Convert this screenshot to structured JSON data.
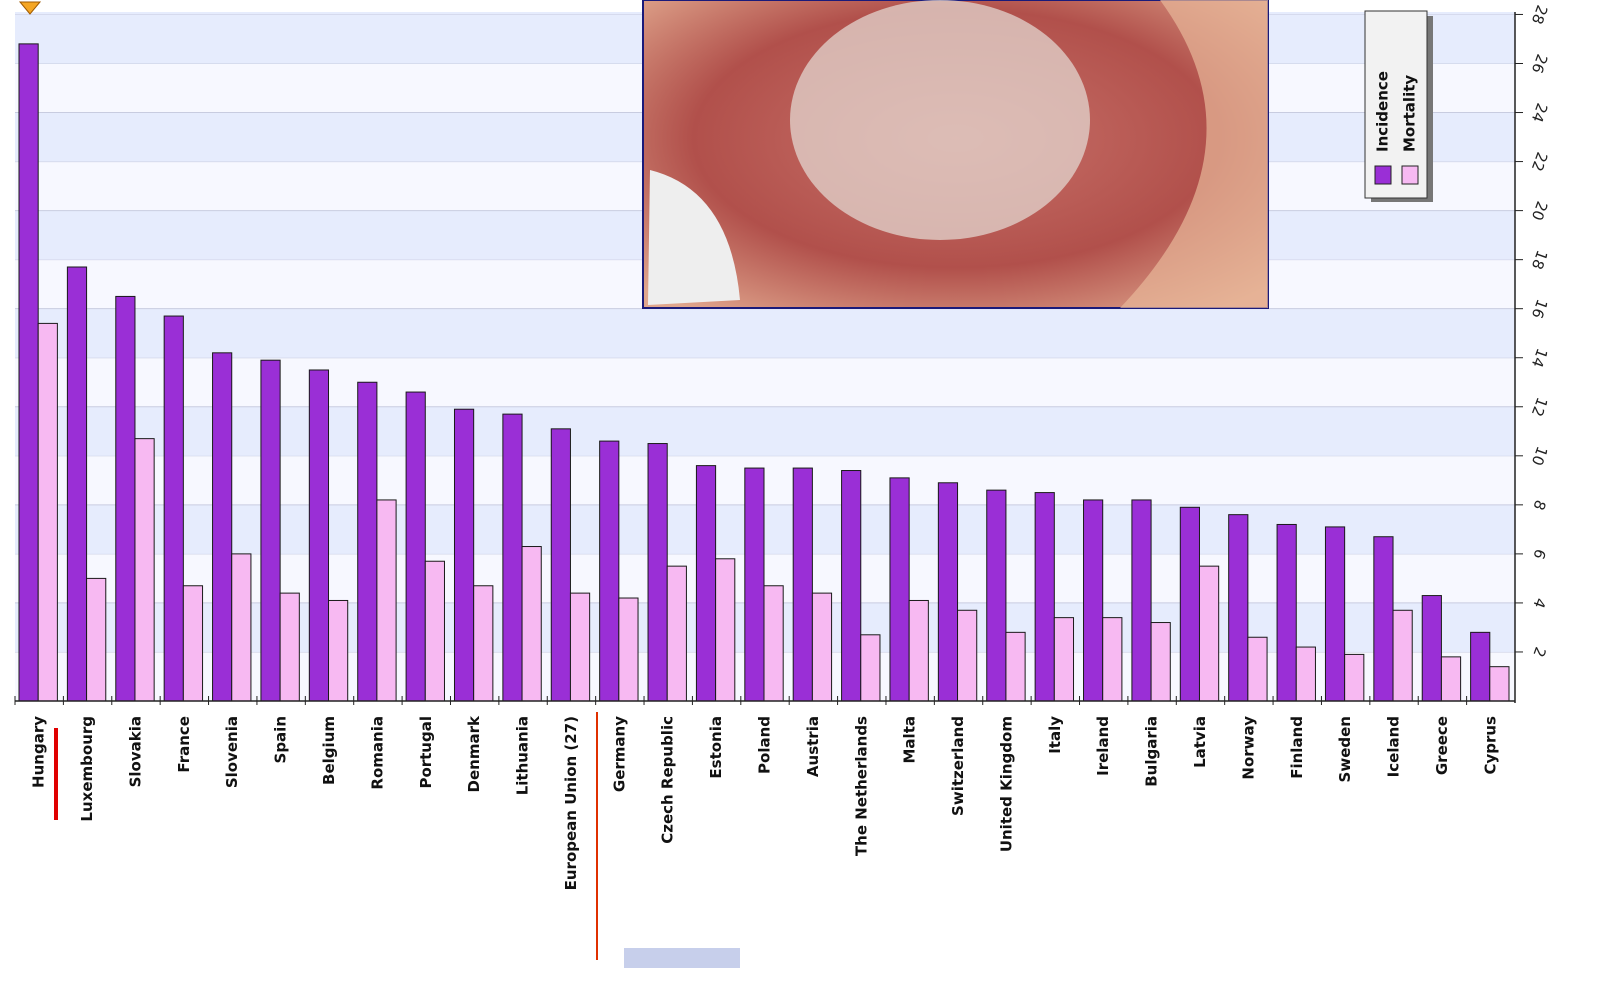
{
  "chart_data": {
    "type": "bar",
    "categories": [
      "Hungary",
      "Luxembourg",
      "Slovakia",
      "France",
      "Slovenia",
      "Spain",
      "Belgium",
      "Romania",
      "Portugal",
      "Denmark",
      "Lithuania",
      "European Union (27)",
      "Germany",
      "Czech Republic",
      "Estonia",
      "Poland",
      "Austria",
      "The Netherlands",
      "Malta",
      "Switzerland",
      "United Kingdom",
      "Italy",
      "Ireland",
      "Bulgaria",
      "Latvia",
      "Norway",
      "Finland",
      "Sweden",
      "Iceland",
      "Greece",
      "Cyprus"
    ],
    "series": [
      {
        "name": "Incidence",
        "color": "#9a2fd6",
        "values": [
          26.8,
          17.7,
          16.5,
          15.7,
          14.2,
          13.9,
          13.5,
          13.0,
          12.6,
          11.9,
          11.7,
          11.1,
          10.6,
          10.5,
          9.6,
          9.5,
          9.5,
          9.4,
          9.1,
          8.9,
          8.6,
          8.5,
          8.2,
          8.2,
          7.9,
          7.6,
          7.2,
          7.1,
          6.7,
          4.3,
          2.8
        ]
      },
      {
        "name": "Mortality",
        "color": "#f7b9f2",
        "values": [
          15.4,
          5.0,
          10.7,
          4.7,
          6.0,
          4.4,
          4.1,
          8.2,
          5.7,
          4.7,
          6.3,
          4.4,
          4.2,
          5.5,
          5.8,
          4.7,
          4.4,
          2.7,
          4.1,
          3.7,
          2.8,
          3.4,
          3.4,
          3.2,
          5.5,
          2.6,
          2.2,
          1.9,
          3.7,
          1.8,
          1.4
        ]
      }
    ],
    "ylim": [
      0,
      28.1
    ],
    "yticks": [
      2,
      4,
      6,
      8,
      10,
      12,
      14,
      16,
      18,
      20,
      22,
      24,
      26,
      28
    ],
    "grid": true
  }
}
